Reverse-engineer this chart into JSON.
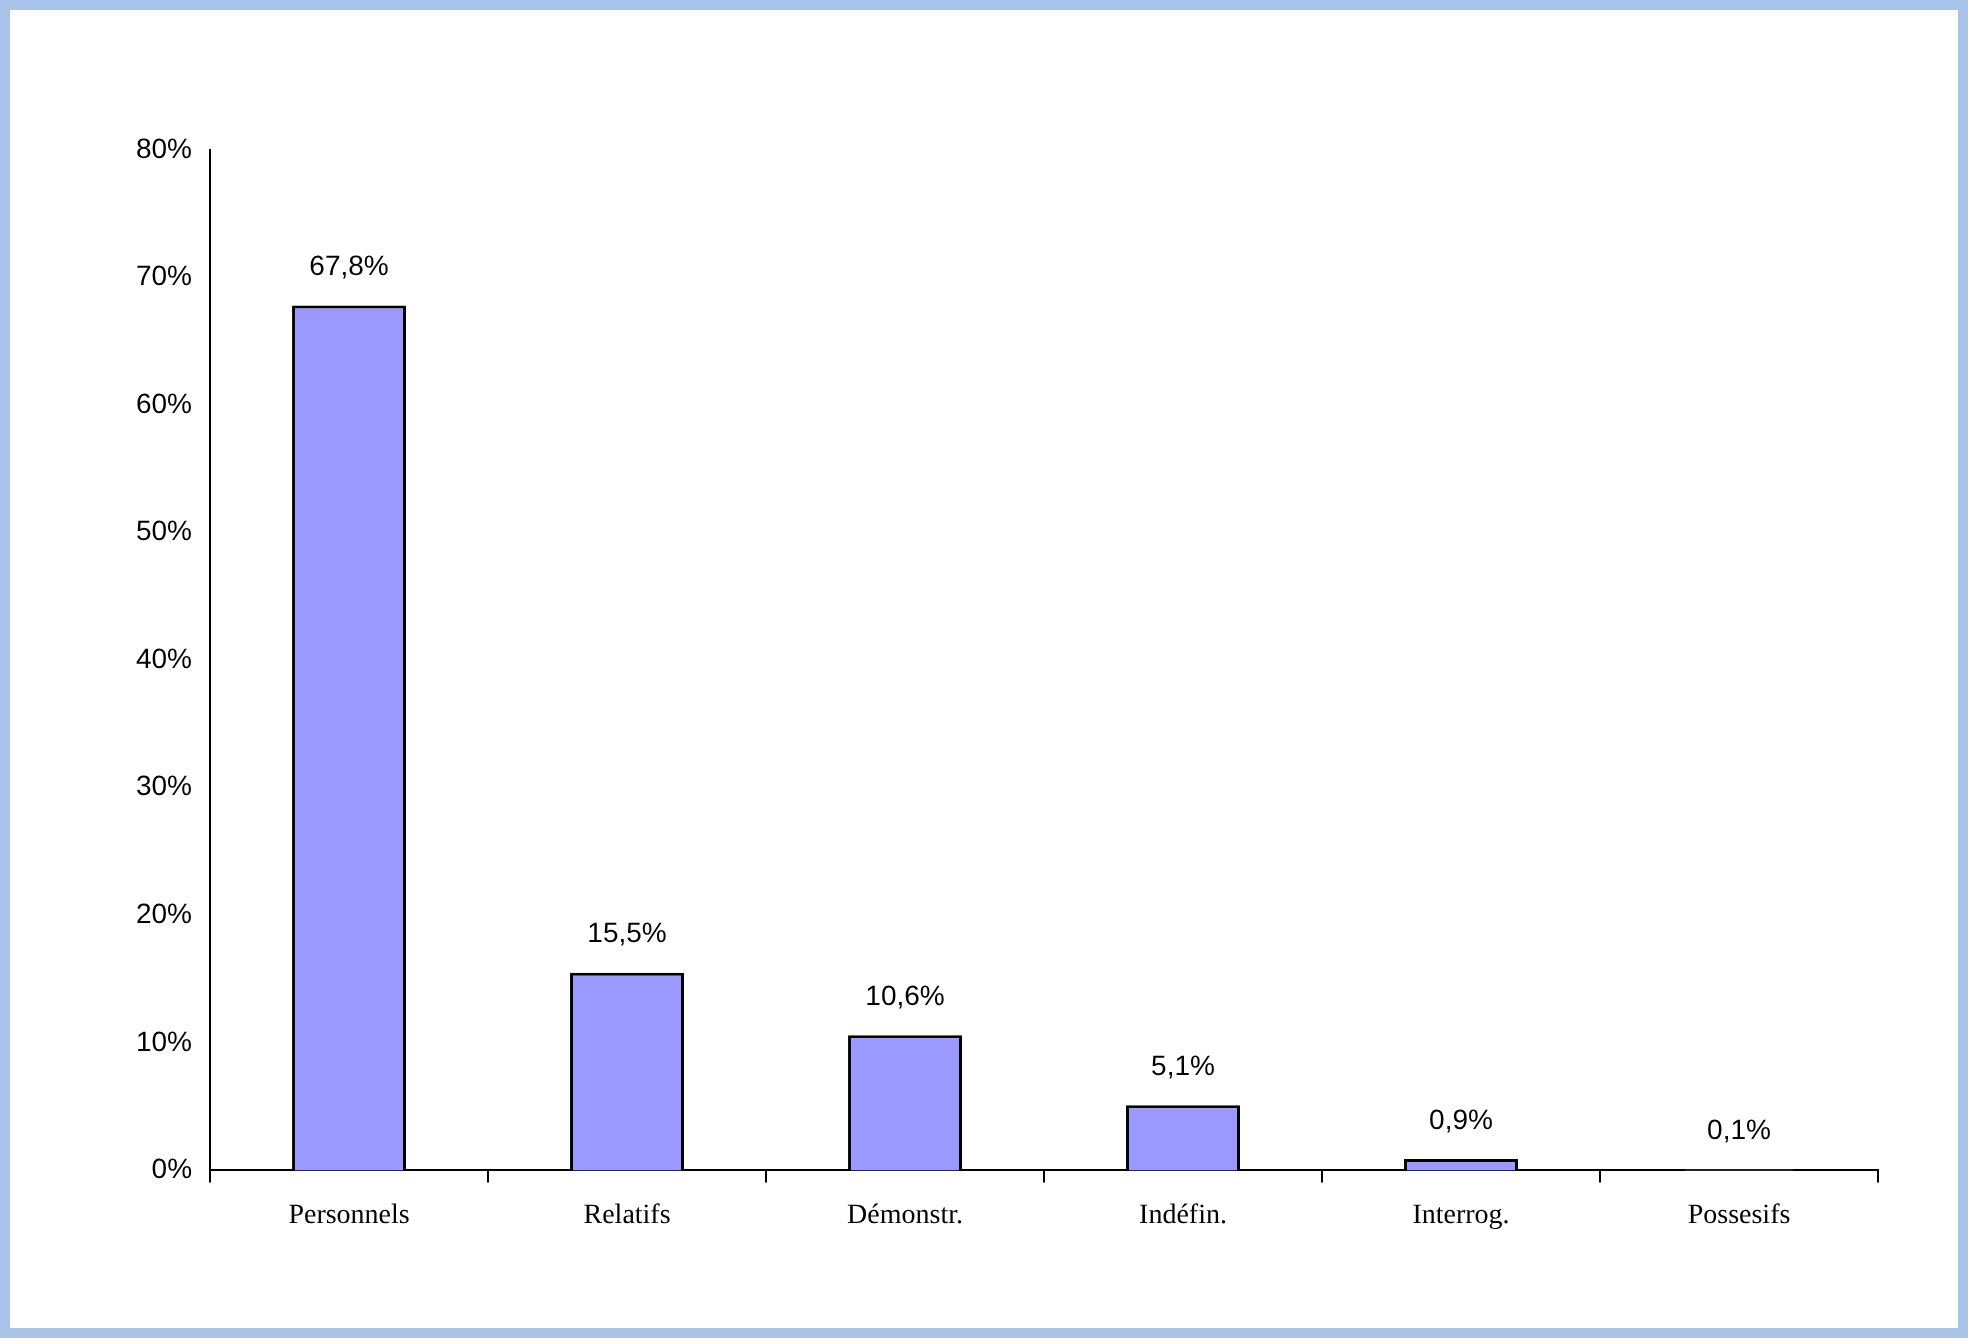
{
  "chart_data": {
    "type": "bar",
    "categories": [
      "Personnels",
      "Relatifs",
      "Démonstr.",
      "Indéfin.",
      "Interrog.",
      "Possesifs"
    ],
    "values": [
      67.8,
      15.5,
      10.6,
      5.1,
      0.9,
      0.1
    ],
    "value_labels": [
      "67,8%",
      "15,5%",
      "10,6%",
      "5,1%",
      "0,9%",
      "0,1%"
    ],
    "color": "#9999ff",
    "ylim": [
      0,
      80
    ],
    "yticks": [
      {
        "value": 0,
        "label": "0%"
      },
      {
        "value": 10,
        "label": "10%"
      },
      {
        "value": 20,
        "label": "20%"
      },
      {
        "value": 30,
        "label": "30%"
      },
      {
        "value": 40,
        "label": "40%"
      },
      {
        "value": 50,
        "label": "50%"
      },
      {
        "value": 60,
        "label": "60%"
      },
      {
        "value": 70,
        "label": "70%"
      },
      {
        "value": 80,
        "label": "80%"
      }
    ],
    "grid": false,
    "legend": false
  }
}
